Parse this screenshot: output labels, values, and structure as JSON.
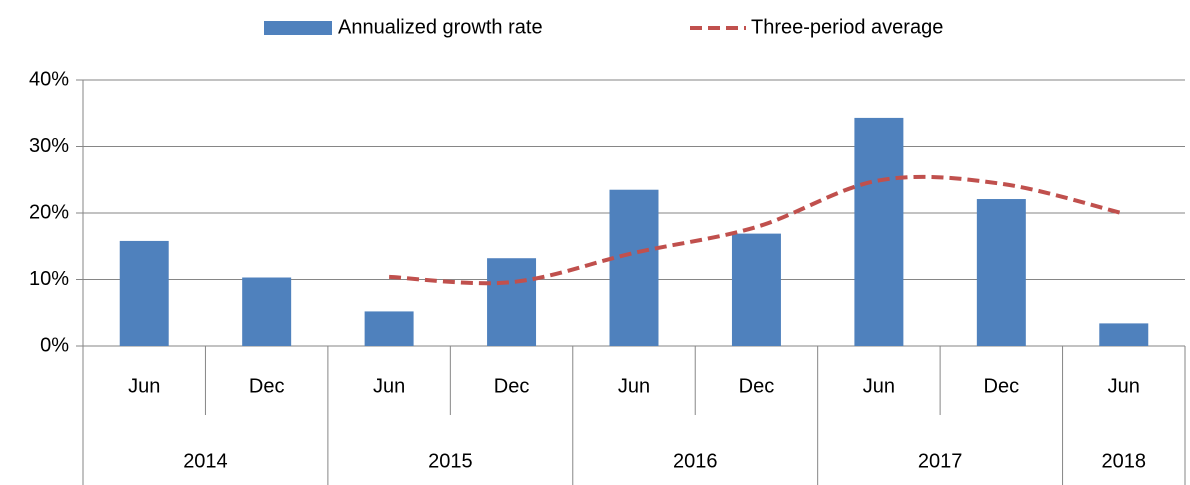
{
  "chart_data": {
    "type": "bar",
    "categories": [
      "Jun",
      "Dec",
      "Jun",
      "Dec",
      "Jun",
      "Dec",
      "Jun",
      "Dec",
      "Jun"
    ],
    "year_labels": [
      "2014",
      null,
      "2015",
      null,
      "2016",
      null,
      "2017",
      null,
      "2018"
    ],
    "series": [
      {
        "name": "Annualized growth rate",
        "type": "bar",
        "color": "#4f81bd",
        "values": [
          15.8,
          10.3,
          5.2,
          13.2,
          23.5,
          16.9,
          34.3,
          22.1,
          3.4
        ]
      },
      {
        "name": "Three-period average",
        "type": "line",
        "color": "#c0504d",
        "dashed": true,
        "smooth": true,
        "values": [
          null,
          null,
          10.4,
          9.6,
          14.0,
          17.9,
          24.9,
          24.4,
          19.9
        ]
      }
    ],
    "ylim": [
      0,
      40
    ],
    "yticks": [
      {
        "value": 0,
        "label": "0%"
      },
      {
        "value": 10,
        "label": "10%"
      },
      {
        "value": 20,
        "label": "20%"
      },
      {
        "value": 30,
        "label": "30%"
      },
      {
        "value": 40,
        "label": "40%"
      }
    ],
    "grid": true,
    "legend": "top"
  }
}
